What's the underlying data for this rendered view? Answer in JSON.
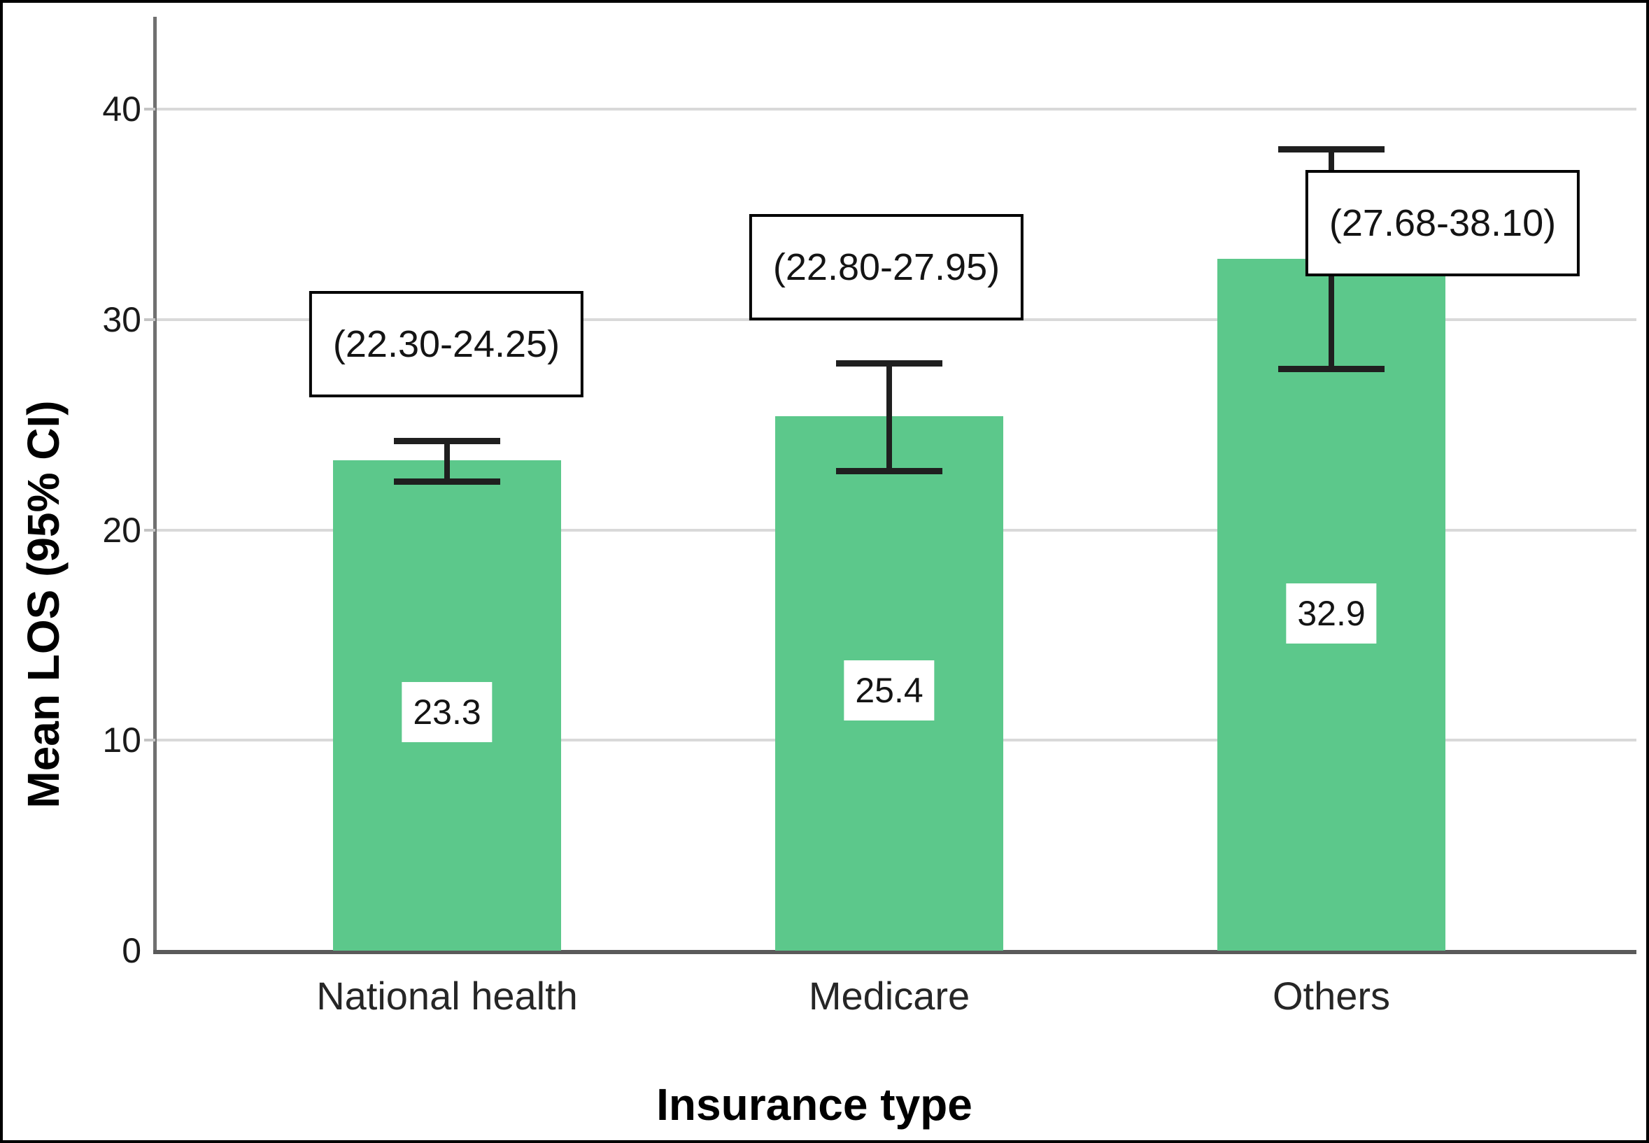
{
  "chart_data": {
    "type": "bar",
    "title": "",
    "xlabel": "Insurance type",
    "ylabel": "Mean LOS (95% CI)",
    "categories": [
      "National health",
      "Medicare",
      "Others"
    ],
    "values": [
      23.3,
      25.4,
      32.9
    ],
    "value_labels": [
      "23.3",
      "25.4",
      "32.9"
    ],
    "ci_low": [
      22.3,
      22.8,
      27.68
    ],
    "ci_high": [
      24.25,
      27.95,
      38.1
    ],
    "ci_labels": [
      "(22.30-24.25)",
      "(22.80-27.95)",
      "(27.68-38.10)"
    ],
    "yticks": [
      0,
      10,
      20,
      30,
      40
    ],
    "ytick_labels": [
      "0",
      "10",
      "20",
      "30",
      "40"
    ],
    "ylim": [
      0,
      44.4
    ],
    "grid": true,
    "legend": "none",
    "bar_color": "#5cc88b",
    "error_bar_color": "#1f1f1f",
    "gridline_color": "#d9d9d9",
    "axis_color": "#707070",
    "annotation_box_border_color": "#000000",
    "annotation_box_fill": "#ffffff"
  }
}
